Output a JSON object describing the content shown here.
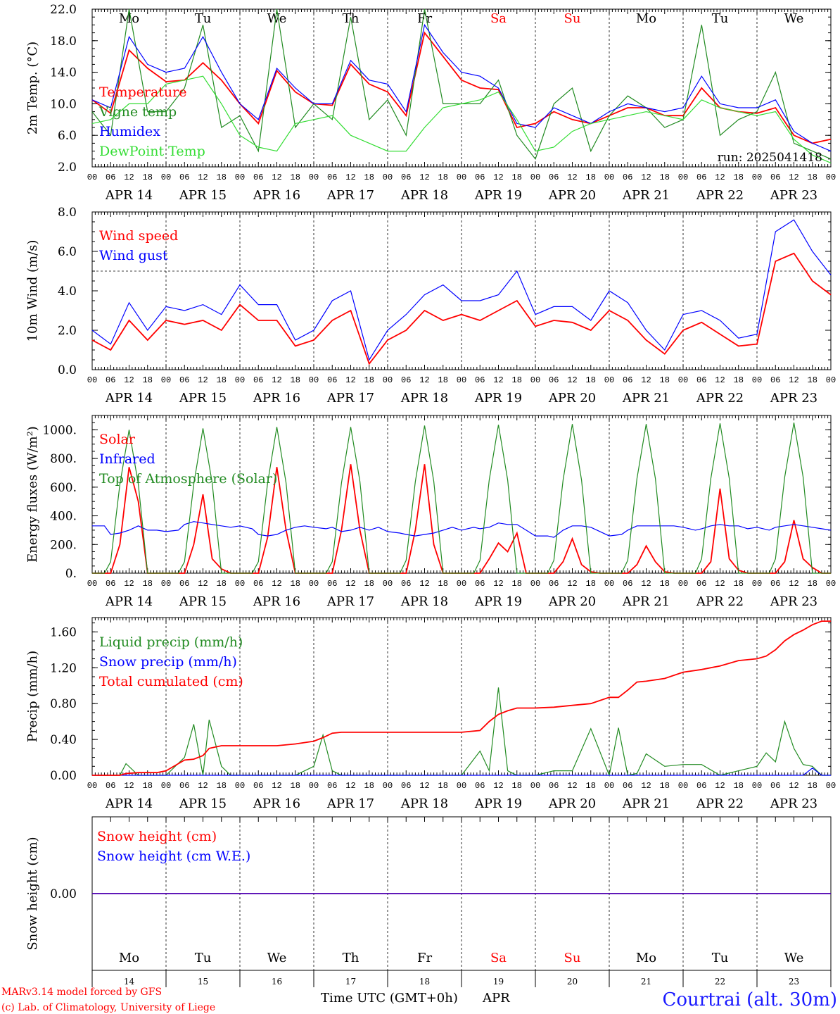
{
  "colors": {
    "red": "#ff0000",
    "green": "#228b22",
    "blue": "#0000ff",
    "light_green": "#33dd33",
    "location_blue": "#1a1aff"
  },
  "days": {
    "weekday_top": [
      "Mo",
      "Tu",
      "We",
      "Th",
      "Fr",
      "Sa",
      "Su",
      "Mo",
      "Tu",
      "We"
    ],
    "weekend_index": [
      5,
      6
    ],
    "date_labels": [
      "APR 14",
      "APR 15",
      "APR 16",
      "APR 17",
      "APR 18",
      "APR 19",
      "APR 20",
      "APR 21",
      "APR 22",
      "APR 23"
    ],
    "day_numbers": [
      "14",
      "15",
      "16",
      "17",
      "18",
      "19",
      "20",
      "21",
      "22",
      "23"
    ],
    "hour_ticks": [
      "00",
      "06",
      "12",
      "18"
    ],
    "last_hour": "00"
  },
  "chart_data": [
    {
      "type": "line",
      "ylabel": "2m Temp. (°C)",
      "ylim": [
        2.0,
        22.0
      ],
      "yticks": [
        "2.0",
        "6.0",
        "10.0",
        "14.0",
        "18.0",
        "22.0"
      ],
      "annotation": "run: 2025041418",
      "legend": [
        "Temperature",
        "Vigne temp",
        "Humidex",
        "DewPoint Temp"
      ],
      "x_hours": [
        0,
        6,
        12,
        18,
        24,
        30,
        36,
        42,
        48,
        54,
        60,
        66,
        72,
        78,
        84,
        90,
        96,
        102,
        108,
        114,
        120,
        126,
        132,
        138,
        144,
        150,
        156,
        162,
        168,
        174,
        180,
        186,
        192,
        198,
        204,
        210,
        216,
        222,
        228,
        234,
        240
      ],
      "series": [
        {
          "name": "Temperature",
          "color": "red",
          "values": [
            10.5,
            8.8,
            16.8,
            14.5,
            12.8,
            13.0,
            15.2,
            13.0,
            10.0,
            7.5,
            14.2,
            11.5,
            10.0,
            9.8,
            15.0,
            12.5,
            11.5,
            8.5,
            19.0,
            16.0,
            13.0,
            12.0,
            11.8,
            7.0,
            7.5,
            9.0,
            8.0,
            7.5,
            8.5,
            9.5,
            9.5,
            8.5,
            8.5,
            12.0,
            9.5,
            9.0,
            8.8,
            9.5,
            6.0,
            5.0,
            5.5
          ]
        },
        {
          "name": "Vigne temp",
          "color": "green",
          "values": [
            9.0,
            6.0,
            22.0,
            9.0,
            9.0,
            12.0,
            20.0,
            7.0,
            8.5,
            4.0,
            22.0,
            7.0,
            10.0,
            8.0,
            21.0,
            8.0,
            10.5,
            6.0,
            22.0,
            10.0,
            10.0,
            10.0,
            13.0,
            6.0,
            3.0,
            10.0,
            12.0,
            4.0,
            8.5,
            11.0,
            9.5,
            7.0,
            8.0,
            20.0,
            6.0,
            8.0,
            9.0,
            14.0,
            5.0,
            4.0,
            3.0
          ]
        },
        {
          "name": "Humidex",
          "color": "blue",
          "values": [
            10.5,
            9.5,
            18.5,
            15.0,
            14.0,
            14.5,
            18.5,
            14.0,
            10.0,
            8.0,
            14.5,
            12.0,
            10.0,
            10.0,
            15.5,
            13.0,
            12.5,
            9.0,
            20.0,
            16.5,
            14.0,
            13.5,
            12.0,
            7.5,
            7.0,
            9.5,
            8.5,
            7.5,
            9.0,
            10.0,
            9.5,
            9.0,
            9.5,
            13.5,
            10.0,
            9.5,
            9.5,
            10.5,
            6.5,
            5.0,
            4.0
          ]
        },
        {
          "name": "DewPoint Temp",
          "color": "light_green",
          "values": [
            7.5,
            8.0,
            10.0,
            10.0,
            12.5,
            13.0,
            13.5,
            10.0,
            6.0,
            4.5,
            4.0,
            7.5,
            8.0,
            8.5,
            6.0,
            5.0,
            4.0,
            4.0,
            7.0,
            9.5,
            10.0,
            10.5,
            11.5,
            8.0,
            4.0,
            4.5,
            6.5,
            7.5,
            8.0,
            8.5,
            9.0,
            8.5,
            8.0,
            10.5,
            9.5,
            9.0,
            8.5,
            9.0,
            5.5,
            3.5,
            2.5
          ]
        }
      ]
    },
    {
      "type": "line",
      "ylabel": "10m Wind (m/s)",
      "ylim": [
        0.0,
        8.0
      ],
      "yticks": [
        "0.0",
        "2.0",
        "4.0",
        "6.0",
        "8.0"
      ],
      "reference_line": 5.0,
      "legend": [
        "Wind speed",
        "Wind gust"
      ],
      "x_hours": [
        0,
        6,
        12,
        18,
        24,
        30,
        36,
        42,
        48,
        54,
        60,
        66,
        72,
        78,
        84,
        90,
        96,
        102,
        108,
        114,
        120,
        126,
        132,
        138,
        144,
        150,
        156,
        162,
        168,
        174,
        180,
        186,
        192,
        198,
        204,
        210,
        216,
        222,
        228,
        234,
        240
      ],
      "series": [
        {
          "name": "Wind speed",
          "color": "red",
          "values": [
            1.5,
            1.0,
            2.5,
            1.5,
            2.5,
            2.3,
            2.5,
            2.0,
            3.3,
            2.5,
            2.5,
            1.2,
            1.5,
            2.5,
            3.0,
            0.3,
            1.5,
            2.0,
            3.0,
            2.5,
            2.8,
            2.5,
            3.0,
            3.5,
            2.2,
            2.5,
            2.4,
            2.0,
            3.0,
            2.5,
            1.5,
            0.8,
            2.0,
            2.4,
            1.8,
            1.2,
            1.3,
            5.5,
            5.9,
            4.5,
            3.8
          ]
        },
        {
          "name": "Wind gust",
          "color": "blue",
          "values": [
            2.0,
            1.3,
            3.4,
            2.0,
            3.2,
            3.0,
            3.3,
            2.8,
            4.3,
            3.3,
            3.3,
            1.5,
            2.0,
            3.5,
            4.0,
            0.5,
            2.0,
            2.8,
            3.8,
            4.3,
            3.5,
            3.5,
            3.8,
            5.0,
            2.8,
            3.2,
            3.2,
            2.5,
            4.0,
            3.4,
            2.0,
            1.0,
            2.8,
            3.0,
            2.5,
            1.6,
            1.8,
            7.0,
            7.6,
            6.0,
            4.8
          ]
        }
      ]
    },
    {
      "type": "line",
      "ylabel": "Energy fluxes (W/m²)",
      "ylim": [
        0,
        1100
      ],
      "yticks": [
        "0.",
        "200.",
        "400.",
        "600.",
        "800.",
        "1000."
      ],
      "legend": [
        "Solar",
        "Infrared",
        "Top of Atmosphere (Solar)"
      ],
      "x_hours": [
        0,
        4,
        6,
        9,
        12,
        15,
        18,
        21,
        24,
        28,
        30,
        33,
        36,
        39,
        42,
        45,
        48,
        52,
        54,
        57,
        60,
        63,
        66,
        69,
        72,
        76,
        78,
        81,
        84,
        87,
        90,
        93,
        96,
        100,
        102,
        105,
        108,
        111,
        114,
        117,
        120,
        124,
        126,
        129,
        132,
        135,
        138,
        141,
        144,
        148,
        150,
        153,
        156,
        159,
        162,
        165,
        168,
        172,
        174,
        177,
        180,
        183,
        186,
        189,
        192,
        196,
        198,
        201,
        204,
        207,
        210,
        213,
        216,
        220,
        222,
        225,
        228,
        231,
        234,
        237,
        240
      ],
      "series": [
        {
          "name": "Solar",
          "color": "red",
          "values": [
            0,
            0,
            0,
            200,
            740,
            500,
            0,
            0,
            0,
            0,
            0,
            200,
            550,
            100,
            30,
            0,
            0,
            0,
            0,
            250,
            740,
            300,
            0,
            0,
            0,
            0,
            0,
            300,
            760,
            300,
            0,
            0,
            0,
            0,
            0,
            300,
            760,
            200,
            0,
            0,
            0,
            0,
            0,
            100,
            210,
            150,
            280,
            0,
            0,
            0,
            0,
            80,
            240,
            60,
            10,
            0,
            0,
            0,
            0,
            60,
            190,
            80,
            10,
            0,
            0,
            0,
            0,
            80,
            590,
            100,
            20,
            0,
            0,
            0,
            0,
            80,
            370,
            100,
            40,
            0,
            0
          ]
        },
        {
          "name": "Infrared",
          "color": "blue",
          "values": [
            330,
            330,
            270,
            280,
            300,
            330,
            300,
            300,
            290,
            300,
            340,
            360,
            350,
            340,
            330,
            320,
            330,
            310,
            270,
            260,
            270,
            300,
            320,
            330,
            320,
            310,
            320,
            290,
            300,
            320,
            300,
            320,
            290,
            280,
            270,
            260,
            270,
            280,
            300,
            320,
            300,
            320,
            310,
            320,
            350,
            340,
            340,
            300,
            260,
            260,
            250,
            300,
            330,
            330,
            320,
            290,
            260,
            270,
            300,
            330,
            330,
            330,
            330,
            330,
            320,
            300,
            310,
            330,
            340,
            330,
            330,
            310,
            320,
            300,
            320,
            330,
            340,
            330,
            320,
            310,
            300
          ]
        },
        {
          "name": "Top of Atmosphere (Solar)",
          "color": "green",
          "values": [
            0,
            0,
            80,
            620,
            1000,
            620,
            0,
            0,
            0,
            0,
            80,
            620,
            1010,
            630,
            0,
            0,
            0,
            0,
            80,
            630,
            1020,
            630,
            0,
            0,
            0,
            0,
            80,
            630,
            1020,
            640,
            0,
            0,
            0,
            0,
            90,
            640,
            1030,
            640,
            0,
            0,
            0,
            0,
            90,
            650,
            1035,
            650,
            0,
            0,
            0,
            0,
            90,
            650,
            1040,
            650,
            0,
            0,
            0,
            0,
            90,
            660,
            1040,
            660,
            0,
            0,
            0,
            0,
            100,
            660,
            1045,
            660,
            0,
            0,
            0,
            0,
            100,
            670,
            1050,
            670,
            0,
            0,
            0
          ]
        }
      ]
    },
    {
      "type": "line",
      "ylabel": "Precip (mm/h)",
      "ylim": [
        0.0,
        1.76
      ],
      "yticks": [
        "0.00",
        "0.40",
        "0.80",
        "1.20",
        "1.60"
      ],
      "legend": [
        "Liquid precip (mm/h)",
        "Snow precip (mm/h)",
        "Total cumulated (cm)"
      ],
      "x_hours": [
        0,
        6,
        9,
        11,
        15,
        21,
        24,
        30,
        33,
        36,
        38,
        42,
        45,
        48,
        54,
        60,
        66,
        72,
        75,
        78,
        81,
        84,
        90,
        96,
        102,
        108,
        114,
        120,
        126,
        129,
        132,
        135,
        138,
        144,
        150,
        156,
        162,
        168,
        171,
        174,
        177,
        180,
        186,
        192,
        198,
        204,
        210,
        216,
        219,
        222,
        225,
        228,
        231,
        234,
        237,
        240
      ],
      "series": [
        {
          "name": "Liquid precip (mm/h)",
          "color": "green",
          "values": [
            0,
            0,
            0,
            0.13,
            0,
            0,
            0,
            0.2,
            0.57,
            0,
            0.62,
            0.1,
            0,
            0,
            0,
            0,
            0,
            0.1,
            0.45,
            0.05,
            0,
            0,
            0,
            0,
            0,
            0,
            0,
            0,
            0.27,
            0.05,
            0.98,
            0.05,
            0,
            0,
            0.05,
            0.05,
            0.52,
            0,
            0.53,
            0,
            0.02,
            0.24,
            0.1,
            0.12,
            0.12,
            0,
            0.05,
            0.1,
            0.25,
            0.15,
            0.6,
            0.3,
            0.12,
            0.1,
            0,
            0
          ]
        },
        {
          "name": "Snow precip (mm/h)",
          "color": "blue",
          "values": [
            0,
            0,
            0,
            0,
            0,
            0,
            0,
            0,
            0,
            0,
            0,
            0,
            0,
            0,
            0,
            0,
            0,
            0,
            0,
            0,
            0,
            0,
            0,
            0,
            0,
            0,
            0,
            0,
            0,
            0,
            0,
            0,
            0,
            0,
            0,
            0,
            0,
            0,
            0,
            0,
            0,
            0,
            0,
            0,
            0,
            0,
            0,
            0,
            0,
            0,
            0,
            0,
            0,
            0.08,
            0,
            0
          ]
        },
        {
          "name": "Total cumulated (cm)",
          "color": "red",
          "values": [
            0,
            0,
            0,
            0.02,
            0.03,
            0.03,
            0.05,
            0.17,
            0.18,
            0.22,
            0.3,
            0.33,
            0.33,
            0.33,
            0.33,
            0.33,
            0.35,
            0.38,
            0.42,
            0.47,
            0.48,
            0.48,
            0.48,
            0.48,
            0.48,
            0.48,
            0.48,
            0.48,
            0.5,
            0.6,
            0.68,
            0.72,
            0.75,
            0.75,
            0.76,
            0.78,
            0.8,
            0.87,
            0.87,
            0.95,
            1.04,
            1.05,
            1.08,
            1.15,
            1.18,
            1.22,
            1.28,
            1.3,
            1.33,
            1.4,
            1.5,
            1.57,
            1.62,
            1.68,
            1.72,
            1.72
          ]
        }
      ]
    },
    {
      "type": "line",
      "ylabel": "Snow height (cm)",
      "ylim": [
        -0.01,
        0.01
      ],
      "yticks": [
        "0.00"
      ],
      "legend": [
        "Snow height (cm)",
        "Snow height (cm W.E.)"
      ],
      "x_hours": [
        0,
        240
      ],
      "series": [
        {
          "name": "Snow height (cm)",
          "color": "red",
          "values": [
            0,
            0
          ]
        },
        {
          "name": "Snow height (cm W.E.)",
          "color": "blue",
          "values": [
            0,
            0
          ]
        }
      ]
    }
  ],
  "footer": {
    "model_line": "MARv3.14 model forced by GFS",
    "copyright_line": "(c) Lab. of Climatology, University of Liege",
    "xlabel": "Time UTC (GMT+0h)",
    "month": "APR",
    "location": "Courtrai (alt. 30m)"
  }
}
